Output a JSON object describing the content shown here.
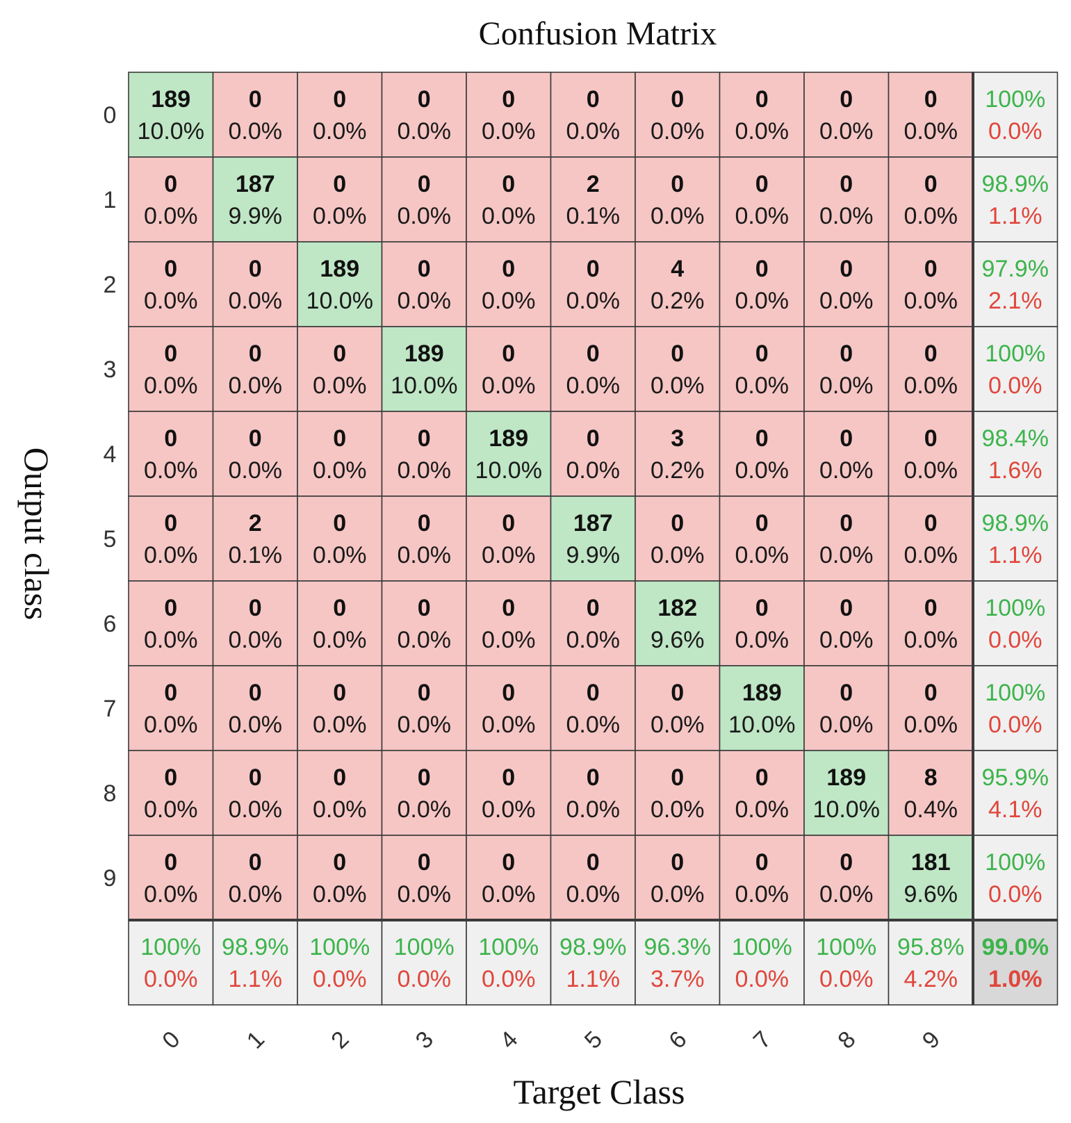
{
  "colors": {
    "diag": "#bfe6c5",
    "off": "#f6c6c4",
    "summary": "#f0f0f0",
    "total": "#d8d8d8",
    "grid": "#3a3a3a",
    "good_text": "#3cb44b",
    "bad_text": "#e0463c"
  },
  "chart_data": {
    "type": "heatmap",
    "title": "Confusion Matrix",
    "xlabel": "Target Class",
    "ylabel": "Output class",
    "x_ticks": [
      "0",
      "1",
      "2",
      "3",
      "4",
      "5",
      "6",
      "7",
      "8",
      "9"
    ],
    "y_ticks": [
      "0",
      "1",
      "2",
      "3",
      "4",
      "5",
      "6",
      "7",
      "8",
      "9"
    ],
    "counts": [
      [
        "189",
        "0",
        "0",
        "0",
        "0",
        "0",
        "0",
        "0",
        "0",
        "0"
      ],
      [
        "0",
        "187",
        "0",
        "0",
        "0",
        "2",
        "0",
        "0",
        "0",
        "0"
      ],
      [
        "0",
        "0",
        "189",
        "0",
        "0",
        "0",
        "4",
        "0",
        "0",
        "0"
      ],
      [
        "0",
        "0",
        "0",
        "189",
        "0",
        "0",
        "0",
        "0",
        "0",
        "0"
      ],
      [
        "0",
        "0",
        "0",
        "0",
        "189",
        "0",
        "3",
        "0",
        "0",
        "0"
      ],
      [
        "0",
        "2",
        "0",
        "0",
        "0",
        "187",
        "0",
        "0",
        "0",
        "0"
      ],
      [
        "0",
        "0",
        "0",
        "0",
        "0",
        "0",
        "182",
        "0",
        "0",
        "0"
      ],
      [
        "0",
        "0",
        "0",
        "0",
        "0",
        "0",
        "0",
        "189",
        "0",
        "0"
      ],
      [
        "0",
        "0",
        "0",
        "0",
        "0",
        "0",
        "0",
        "0",
        "189",
        "8"
      ],
      [
        "0",
        "0",
        "0",
        "0",
        "0",
        "0",
        "0",
        "0",
        "0",
        "181"
      ]
    ],
    "percents": [
      [
        "10.0%",
        "0.0%",
        "0.0%",
        "0.0%",
        "0.0%",
        "0.0%",
        "0.0%",
        "0.0%",
        "0.0%",
        "0.0%"
      ],
      [
        "0.0%",
        "9.9%",
        "0.0%",
        "0.0%",
        "0.0%",
        "0.1%",
        "0.0%",
        "0.0%",
        "0.0%",
        "0.0%"
      ],
      [
        "0.0%",
        "0.0%",
        "10.0%",
        "0.0%",
        "0.0%",
        "0.0%",
        "0.2%",
        "0.0%",
        "0.0%",
        "0.0%"
      ],
      [
        "0.0%",
        "0.0%",
        "0.0%",
        "10.0%",
        "0.0%",
        "0.0%",
        "0.0%",
        "0.0%",
        "0.0%",
        "0.0%"
      ],
      [
        "0.0%",
        "0.0%",
        "0.0%",
        "0.0%",
        "10.0%",
        "0.0%",
        "0.2%",
        "0.0%",
        "0.0%",
        "0.0%"
      ],
      [
        "0.0%",
        "0.1%",
        "0.0%",
        "0.0%",
        "0.0%",
        "9.9%",
        "0.0%",
        "0.0%",
        "0.0%",
        "0.0%"
      ],
      [
        "0.0%",
        "0.0%",
        "0.0%",
        "0.0%",
        "0.0%",
        "0.0%",
        "9.6%",
        "0.0%",
        "0.0%",
        "0.0%"
      ],
      [
        "0.0%",
        "0.0%",
        "0.0%",
        "0.0%",
        "0.0%",
        "0.0%",
        "0.0%",
        "10.0%",
        "0.0%",
        "0.0%"
      ],
      [
        "0.0%",
        "0.0%",
        "0.0%",
        "0.0%",
        "0.0%",
        "0.0%",
        "0.0%",
        "0.0%",
        "10.0%",
        "0.4%"
      ],
      [
        "0.0%",
        "0.0%",
        "0.0%",
        "0.0%",
        "0.0%",
        "0.0%",
        "0.0%",
        "0.0%",
        "0.0%",
        "9.6%"
      ]
    ],
    "row_summary": [
      [
        "100%",
        "0.0%"
      ],
      [
        "98.9%",
        "1.1%"
      ],
      [
        "97.9%",
        "2.1%"
      ],
      [
        "100%",
        "0.0%"
      ],
      [
        "98.4%",
        "1.6%"
      ],
      [
        "98.9%",
        "1.1%"
      ],
      [
        "100%",
        "0.0%"
      ],
      [
        "100%",
        "0.0%"
      ],
      [
        "95.9%",
        "4.1%"
      ],
      [
        "100%",
        "0.0%"
      ]
    ],
    "col_summary": [
      [
        "100%",
        "0.0%"
      ],
      [
        "98.9%",
        "1.1%"
      ],
      [
        "100%",
        "0.0%"
      ],
      [
        "100%",
        "0.0%"
      ],
      [
        "100%",
        "0.0%"
      ],
      [
        "98.9%",
        "1.1%"
      ],
      [
        "96.3%",
        "3.7%"
      ],
      [
        "100%",
        "0.0%"
      ],
      [
        "100%",
        "0.0%"
      ],
      [
        "95.8%",
        "4.2%"
      ]
    ],
    "overall": [
      "99.0%",
      "1.0%"
    ]
  }
}
